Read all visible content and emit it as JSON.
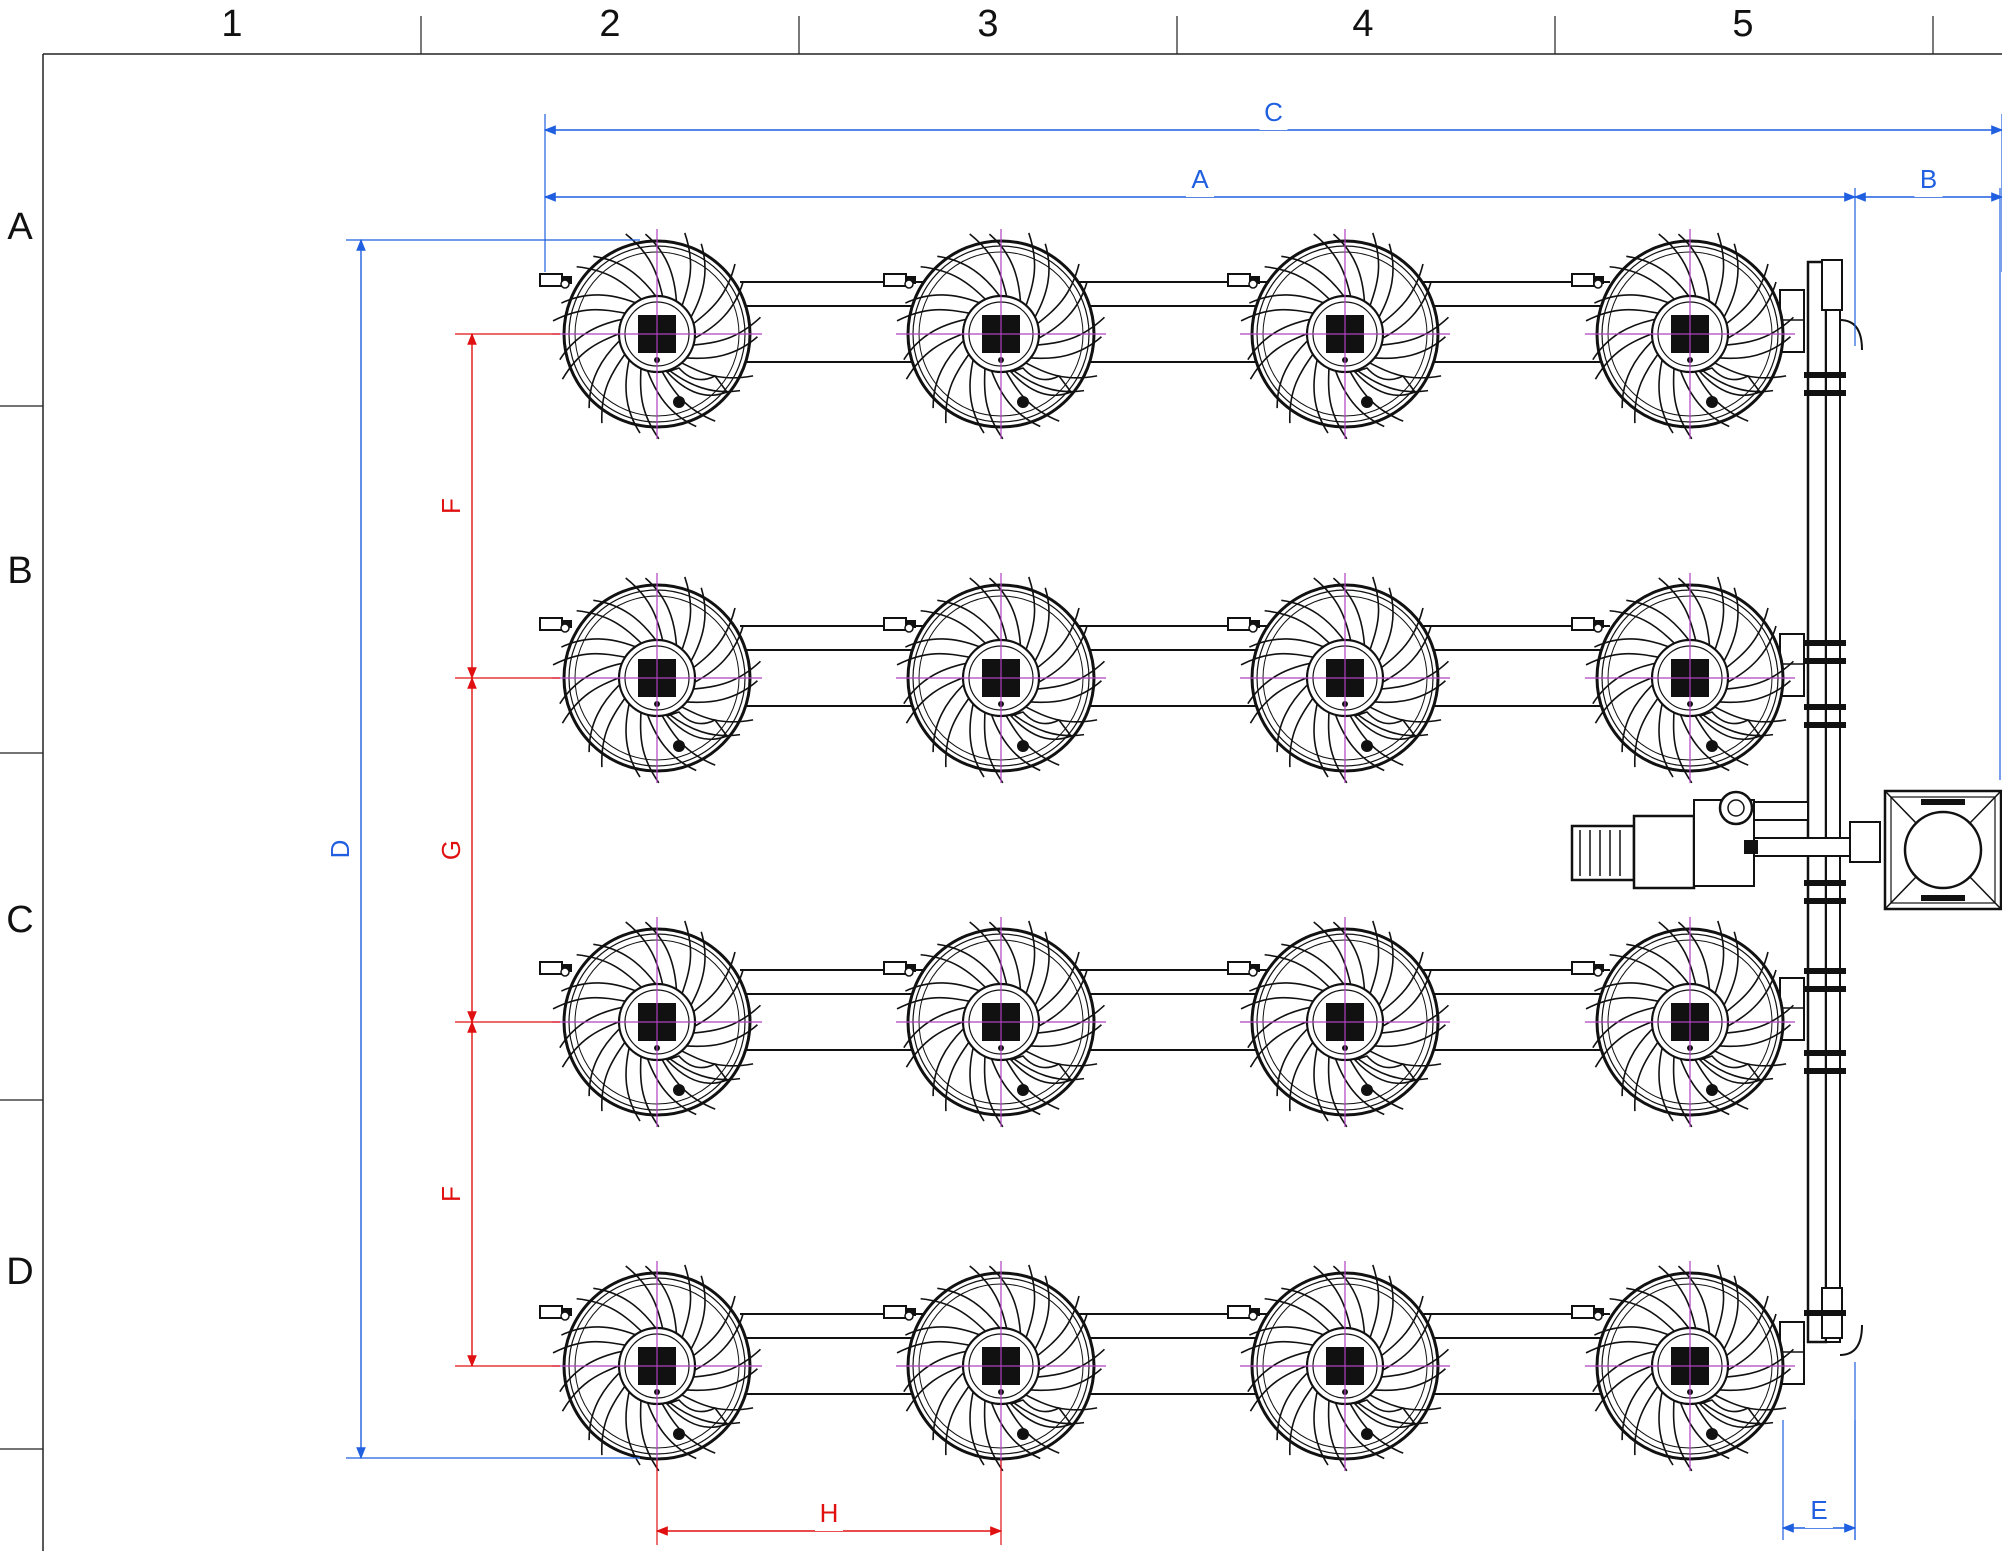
{
  "zone_columns": [
    "1",
    "2",
    "3",
    "4",
    "5"
  ],
  "zone_rows": [
    "A",
    "B",
    "C",
    "D"
  ],
  "dimensions": {
    "A": "A",
    "B": "B",
    "C": "C",
    "D": "D",
    "E": "E",
    "F_upper": "F",
    "G": "G",
    "F_lower": "F",
    "H": "H"
  },
  "layout": {
    "fan_rows": 4,
    "fan_columns": 4
  },
  "colors": {
    "drawing_line": "#111111",
    "blue_dimension": "#1f5fe0",
    "red_dimension": "#e01010",
    "centerline": "#b040c0",
    "border": "#222222"
  },
  "icons": {
    "fan": "radial-fan-icon",
    "motor": "pump-motor-icon",
    "filter": "filter-housing-icon"
  }
}
